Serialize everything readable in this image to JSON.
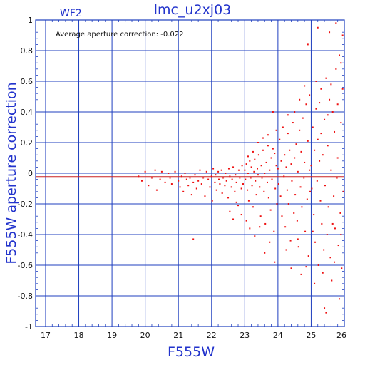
{
  "chart_data": {
    "type": "scatter",
    "title": "lmc_u2xj03",
    "subtitle": "WF2",
    "annotation": "Average aperture correction: -0.022",
    "xlabel": "F555W",
    "ylabel": "F555W aperture correction",
    "xlim": [
      16.7,
      26.0
    ],
    "ylim": [
      -1.0,
      1.0
    ],
    "x_ticks": [
      "17",
      "18",
      "19",
      "20",
      "21",
      "22",
      "23",
      "24",
      "25",
      "26"
    ],
    "y_ticks": [
      "-1",
      "-0.8",
      "-0.6",
      "-0.4",
      "-0.2",
      "0",
      "0.2",
      "0.4",
      "0.6",
      "0.8",
      "1"
    ],
    "grid": true,
    "reference_lines": [
      {
        "y": 0.0,
        "color": "#1f3fbf"
      },
      {
        "y": -0.022,
        "color": "#cc2222"
      }
    ],
    "point_color": "#ee1111",
    "points": [
      [
        19.8,
        -0.02
      ],
      [
        19.9,
        -0.05
      ],
      [
        20.0,
        0.01
      ],
      [
        20.1,
        -0.08
      ],
      [
        20.2,
        -0.03
      ],
      [
        20.3,
        0.02
      ],
      [
        20.35,
        -0.11
      ],
      [
        20.45,
        -0.04
      ],
      [
        20.5,
        0.01
      ],
      [
        20.6,
        -0.06
      ],
      [
        20.7,
        0.0
      ],
      [
        20.75,
        -0.03
      ],
      [
        20.8,
        -0.07
      ],
      [
        20.9,
        0.01
      ],
      [
        21.0,
        -0.05
      ],
      [
        21.05,
        -0.09
      ],
      [
        21.1,
        -0.02
      ],
      [
        21.15,
        -0.12
      ],
      [
        21.2,
        0.0
      ],
      [
        21.25,
        -0.04
      ],
      [
        21.3,
        -0.08
      ],
      [
        21.35,
        -0.03
      ],
      [
        21.4,
        -0.14
      ],
      [
        21.45,
        -0.06
      ],
      [
        21.5,
        -0.01
      ],
      [
        21.55,
        -0.1
      ],
      [
        21.6,
        -0.05
      ],
      [
        21.65,
        0.02
      ],
      [
        21.7,
        -0.07
      ],
      [
        21.75,
        -0.03
      ],
      [
        21.8,
        -0.15
      ],
      [
        21.85,
        0.01
      ],
      [
        21.9,
        -0.04
      ],
      [
        21.95,
        -0.09
      ],
      [
        21.45,
        -0.43
      ],
      [
        22.0,
        -0.02
      ],
      [
        22.02,
        -0.18
      ],
      [
        22.05,
        0.03
      ],
      [
        22.1,
        -0.06
      ],
      [
        22.12,
        -0.01
      ],
      [
        22.15,
        -0.11
      ],
      [
        22.2,
        0.01
      ],
      [
        22.22,
        -0.04
      ],
      [
        22.25,
        -0.07
      ],
      [
        22.3,
        0.02
      ],
      [
        22.32,
        -0.13
      ],
      [
        22.35,
        -0.03
      ],
      [
        22.4,
        -0.08
      ],
      [
        22.42,
        0.0
      ],
      [
        22.45,
        -0.05
      ],
      [
        22.5,
        -0.16
      ],
      [
        22.52,
        0.03
      ],
      [
        22.55,
        -0.02
      ],
      [
        22.6,
        -0.09
      ],
      [
        22.62,
        -0.04
      ],
      [
        22.65,
        0.04
      ],
      [
        22.7,
        -0.12
      ],
      [
        22.72,
        -0.01
      ],
      [
        22.75,
        -0.06
      ],
      [
        22.8,
        -0.21
      ],
      [
        22.82,
        0.02
      ],
      [
        22.85,
        -0.03
      ],
      [
        22.9,
        -0.1
      ],
      [
        22.92,
        0.05
      ],
      [
        22.95,
        -0.07
      ],
      [
        22.55,
        -0.25
      ],
      [
        22.65,
        -0.3
      ],
      [
        22.9,
        -0.27
      ],
      [
        22.75,
        -0.19
      ],
      [
        23.0,
        0.02
      ],
      [
        23.02,
        -0.04
      ],
      [
        23.05,
        0.06
      ],
      [
        23.08,
        -0.11
      ],
      [
        23.1,
        0.0
      ],
      [
        23.12,
        -0.18
      ],
      [
        23.15,
        0.08
      ],
      [
        23.18,
        -0.03
      ],
      [
        23.2,
        0.04
      ],
      [
        23.22,
        -0.08
      ],
      [
        23.25,
        -0.22
      ],
      [
        23.28,
        0.01
      ],
      [
        23.3,
        0.09
      ],
      [
        23.32,
        -0.05
      ],
      [
        23.35,
        -0.14
      ],
      [
        23.38,
        0.03
      ],
      [
        23.4,
        -0.01
      ],
      [
        23.42,
        0.12
      ],
      [
        23.45,
        -0.09
      ],
      [
        23.48,
        -0.28
      ],
      [
        23.5,
        0.05
      ],
      [
        23.52,
        -0.03
      ],
      [
        23.55,
        0.15
      ],
      [
        23.58,
        -0.12
      ],
      [
        23.6,
        0.0
      ],
      [
        23.62,
        -0.33
      ],
      [
        23.65,
        0.07
      ],
      [
        23.68,
        -0.06
      ],
      [
        23.7,
        0.18
      ],
      [
        23.72,
        -0.16
      ],
      [
        23.75,
        0.02
      ],
      [
        23.78,
        -0.24
      ],
      [
        23.8,
        0.1
      ],
      [
        23.82,
        -0.04
      ],
      [
        23.85,
        0.4
      ],
      [
        23.88,
        -0.38
      ],
      [
        23.9,
        0.13
      ],
      [
        23.92,
        -0.1
      ],
      [
        23.95,
        0.05
      ],
      [
        23.97,
        -0.2
      ],
      [
        23.05,
        -0.31
      ],
      [
        23.15,
        -0.36
      ],
      [
        23.3,
        -0.41
      ],
      [
        23.45,
        -0.35
      ],
      [
        23.6,
        -0.52
      ],
      [
        23.75,
        -0.45
      ],
      [
        23.9,
        -0.58
      ],
      [
        23.1,
        0.11
      ],
      [
        23.25,
        0.14
      ],
      [
        23.4,
        0.2
      ],
      [
        23.55,
        0.23
      ],
      [
        23.7,
        0.25
      ],
      [
        23.85,
        0.16
      ],
      [
        23.95,
        0.28
      ],
      [
        24.0,
        0.03
      ],
      [
        24.02,
        -0.07
      ],
      [
        24.05,
        0.22
      ],
      [
        24.08,
        -0.15
      ],
      [
        24.1,
        0.08
      ],
      [
        24.12,
        -0.28
      ],
      [
        24.15,
        0.3
      ],
      [
        24.18,
        -0.02
      ],
      [
        24.2,
        0.12
      ],
      [
        24.22,
        -0.35
      ],
      [
        24.25,
        0.04
      ],
      [
        24.28,
        -0.11
      ],
      [
        24.3,
        0.26
      ],
      [
        24.32,
        -0.2
      ],
      [
        24.35,
        0.15
      ],
      [
        24.38,
        -0.44
      ],
      [
        24.4,
        0.06
      ],
      [
        24.42,
        -0.05
      ],
      [
        24.45,
        0.33
      ],
      [
        24.48,
        -0.26
      ],
      [
        24.5,
        0.1
      ],
      [
        24.52,
        -0.14
      ],
      [
        24.55,
        0.19
      ],
      [
        24.58,
        -0.31
      ],
      [
        24.6,
        0.01
      ],
      [
        24.62,
        -0.48
      ],
      [
        24.65,
        0.28
      ],
      [
        24.68,
        -0.09
      ],
      [
        24.7,
        0.14
      ],
      [
        24.72,
        -0.22
      ],
      [
        24.75,
        0.36
      ],
      [
        24.78,
        -0.03
      ],
      [
        24.8,
        0.07
      ],
      [
        24.82,
        -0.38
      ],
      [
        24.85,
        0.45
      ],
      [
        24.88,
        -0.17
      ],
      [
        24.9,
        0.21
      ],
      [
        24.92,
        -0.54
      ],
      [
        24.95,
        0.02
      ],
      [
        24.97,
        -0.12
      ],
      [
        24.3,
        0.38
      ],
      [
        24.5,
        0.4
      ],
      [
        24.65,
        0.48
      ],
      [
        24.8,
        0.57
      ],
      [
        24.95,
        0.51
      ],
      [
        24.4,
        -0.62
      ],
      [
        24.7,
        -0.66
      ],
      [
        24.85,
        -0.61
      ],
      [
        24.9,
        0.84
      ],
      [
        24.6,
        -0.43
      ],
      [
        24.25,
        -0.5
      ],
      [
        25.0,
        0.05
      ],
      [
        25.02,
        -0.1
      ],
      [
        25.05,
        0.3
      ],
      [
        25.08,
        -0.27
      ],
      [
        25.1,
        0.15
      ],
      [
        25.12,
        -0.45
      ],
      [
        25.15,
        0.42
      ],
      [
        25.18,
        -0.05
      ],
      [
        25.2,
        0.22
      ],
      [
        25.22,
        -0.6
      ],
      [
        25.25,
        0.08
      ],
      [
        25.28,
        -0.18
      ],
      [
        25.3,
        0.55
      ],
      [
        25.32,
        -0.33
      ],
      [
        25.35,
        0.12
      ],
      [
        25.38,
        -0.5
      ],
      [
        25.4,
        0.35
      ],
      [
        25.42,
        -0.08
      ],
      [
        25.45,
        0.62
      ],
      [
        25.48,
        -0.4
      ],
      [
        25.5,
        0.18
      ],
      [
        25.52,
        -0.22
      ],
      [
        25.55,
        0.48
      ],
      [
        25.58,
        -0.55
      ],
      [
        25.6,
        0.02
      ],
      [
        25.62,
        -0.7
      ],
      [
        25.65,
        0.4
      ],
      [
        25.68,
        -0.15
      ],
      [
        25.7,
        0.27
      ],
      [
        25.72,
        -0.36
      ],
      [
        25.75,
        0.68
      ],
      [
        25.78,
        -0.03
      ],
      [
        25.8,
        0.1
      ],
      [
        25.82,
        -0.47
      ],
      [
        25.85,
        0.77
      ],
      [
        25.88,
        -0.26
      ],
      [
        25.9,
        0.33
      ],
      [
        25.92,
        -0.62
      ],
      [
        25.95,
        0.9
      ],
      [
        25.97,
        -0.12
      ],
      [
        25.1,
        -0.72
      ],
      [
        25.25,
        0.46
      ],
      [
        25.4,
        -0.88
      ],
      [
        25.6,
        0.58
      ],
      [
        25.75,
        0.98
      ],
      [
        25.85,
        -0.82
      ],
      [
        25.2,
        0.95
      ],
      [
        25.45,
        -0.91
      ],
      [
        25.55,
        0.92
      ],
      [
        25.7,
        -0.58
      ],
      [
        25.9,
        0.72
      ],
      [
        25.95,
        0.55
      ],
      [
        25.35,
        -0.65
      ],
      [
        25.15,
        0.6
      ],
      [
        25.05,
        -0.38
      ],
      [
        25.3,
        0.26
      ],
      [
        25.5,
        0.38
      ],
      [
        25.65,
        -0.33
      ],
      [
        25.8,
        0.45
      ],
      [
        25.9,
        -0.4
      ]
    ]
  }
}
